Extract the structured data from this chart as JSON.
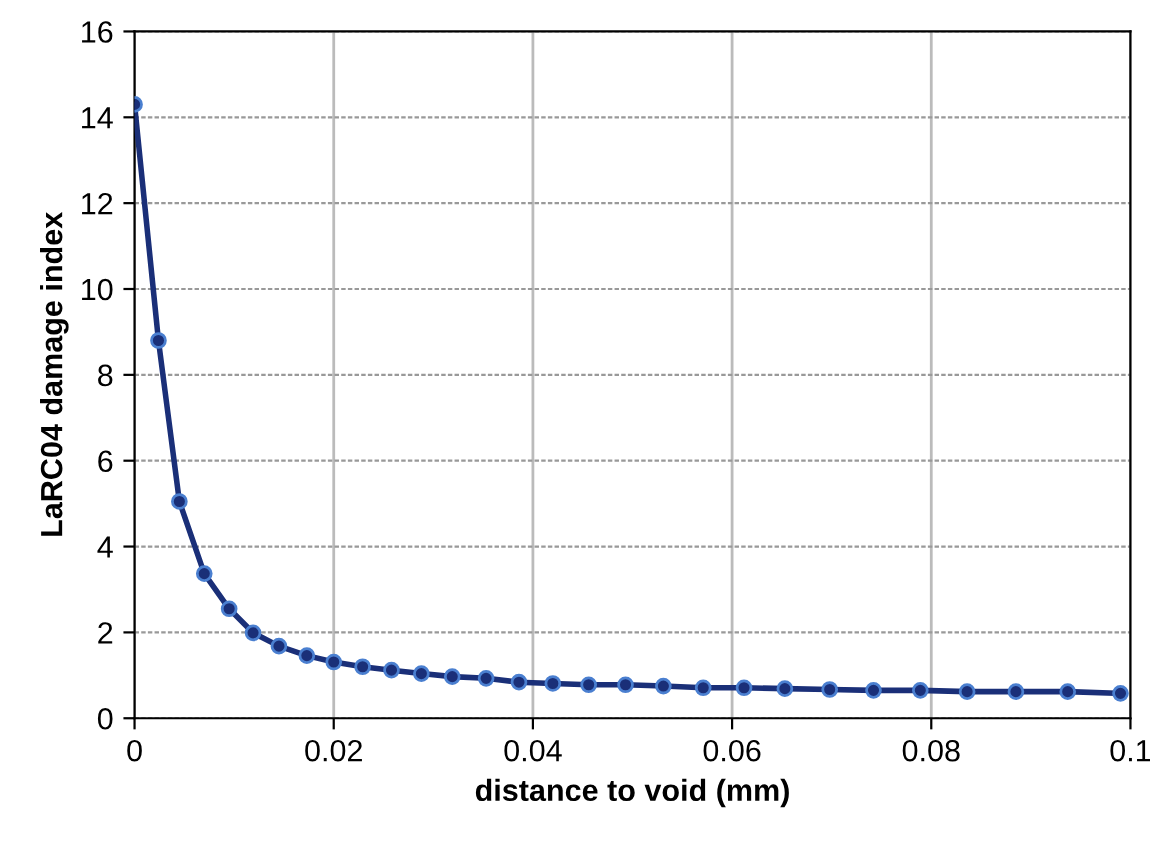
{
  "chart_data": {
    "type": "line",
    "xlabel": "distance to void (mm)",
    "ylabel": "LaRC04 damage index",
    "x": [
      0,
      0.0024,
      0.0045,
      0.007,
      0.0095,
      0.0119,
      0.0145,
      0.0173,
      0.02,
      0.0229,
      0.0258,
      0.0288,
      0.0319,
      0.0353,
      0.0386,
      0.042,
      0.0456,
      0.0493,
      0.0531,
      0.0571,
      0.0612,
      0.0653,
      0.0698,
      0.0742,
      0.0789,
      0.0836,
      0.0885,
      0.0937,
      0.099
    ],
    "series": [
      {
        "color": "#1a2f78",
        "values": [
          14.3,
          8.8,
          5.05,
          3.37,
          2.55,
          1.99,
          1.68,
          1.46,
          1.31,
          1.2,
          1.12,
          1.04,
          0.97,
          0.93,
          0.84,
          0.81,
          0.78,
          0.78,
          0.75,
          0.71,
          0.71,
          0.69,
          0.67,
          0.65,
          0.65,
          0.62,
          0.62,
          0.62,
          0.58
        ]
      }
    ],
    "xlim": [
      0,
      0.1
    ],
    "ylim": [
      0,
      16
    ],
    "xticks": [
      0,
      0.02,
      0.04,
      0.06,
      0.08,
      0.1
    ],
    "yticks": [
      0,
      2,
      4,
      6,
      8,
      10,
      12,
      14,
      16
    ],
    "grid": true,
    "marker": "circle",
    "line_style": "solid",
    "legend": false
  }
}
